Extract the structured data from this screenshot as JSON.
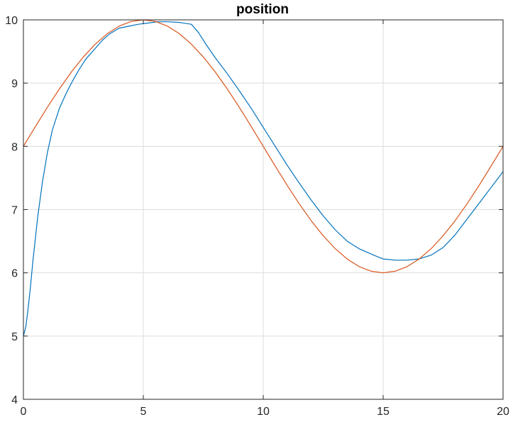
{
  "chart_data": {
    "type": "line",
    "title": "position",
    "xlabel": "",
    "ylabel": "",
    "xlim": [
      0,
      20
    ],
    "ylim": [
      4,
      10
    ],
    "xticks": [
      "0",
      "5",
      "10",
      "15",
      "20"
    ],
    "yticks": [
      "4",
      "5",
      "6",
      "7",
      "8",
      "9",
      "10"
    ],
    "grid": true,
    "series": [
      {
        "color": "#0072BD",
        "x": [
          0,
          0.1,
          0.2,
          0.3,
          0.4,
          0.5,
          0.6,
          0.8,
          1.0,
          1.2,
          1.5,
          1.8,
          2.0,
          2.3,
          2.6,
          3.0,
          3.3,
          3.6,
          4.0,
          4.4,
          4.8,
          5.2,
          5.6,
          6.0,
          6.5,
          7.0,
          7.3,
          7.6,
          8.0,
          8.5,
          9.0,
          9.5,
          10.0,
          10.5,
          11.0,
          11.5,
          12.0,
          12.5,
          13.0,
          13.5,
          14.0,
          14.3,
          14.6,
          15.0,
          15.5,
          16.0,
          16.5,
          17.0,
          17.5,
          18.0,
          18.5,
          19.0,
          19.5,
          20.0
        ],
        "y": [
          5.0,
          5.15,
          5.45,
          5.8,
          6.2,
          6.55,
          6.9,
          7.45,
          7.9,
          8.25,
          8.6,
          8.85,
          9.0,
          9.2,
          9.38,
          9.55,
          9.68,
          9.78,
          9.87,
          9.9,
          9.93,
          9.95,
          9.97,
          9.97,
          9.96,
          9.93,
          9.8,
          9.62,
          9.4,
          9.15,
          8.88,
          8.6,
          8.3,
          8.0,
          7.7,
          7.42,
          7.15,
          6.9,
          6.68,
          6.5,
          6.38,
          6.33,
          6.28,
          6.22,
          6.2,
          6.2,
          6.22,
          6.28,
          6.4,
          6.6,
          6.85,
          7.1,
          7.35,
          7.6
        ]
      },
      {
        "color": "#D95319",
        "x": [
          0,
          0.5,
          1.0,
          1.5,
          2.0,
          2.5,
          3.0,
          3.5,
          4.0,
          4.5,
          5.0,
          5.5,
          6.0,
          6.5,
          7.0,
          7.5,
          8.0,
          8.5,
          9.0,
          9.5,
          10.0,
          10.5,
          11.0,
          11.5,
          12.0,
          12.5,
          13.0,
          13.5,
          14.0,
          14.5,
          15.0,
          15.5,
          16.0,
          16.5,
          17.0,
          17.5,
          18.0,
          18.5,
          19.0,
          19.5,
          20.0
        ],
        "y": [
          8.0,
          8.313,
          8.618,
          8.908,
          9.176,
          9.414,
          9.618,
          9.782,
          9.902,
          9.975,
          10.0,
          9.975,
          9.902,
          9.782,
          9.618,
          9.414,
          9.176,
          8.908,
          8.618,
          8.313,
          8.0,
          7.687,
          7.382,
          7.092,
          6.824,
          6.586,
          6.382,
          6.218,
          6.098,
          6.025,
          6.0,
          6.025,
          6.098,
          6.218,
          6.382,
          6.586,
          6.824,
          7.092,
          7.382,
          7.687,
          8.0
        ]
      }
    ]
  }
}
